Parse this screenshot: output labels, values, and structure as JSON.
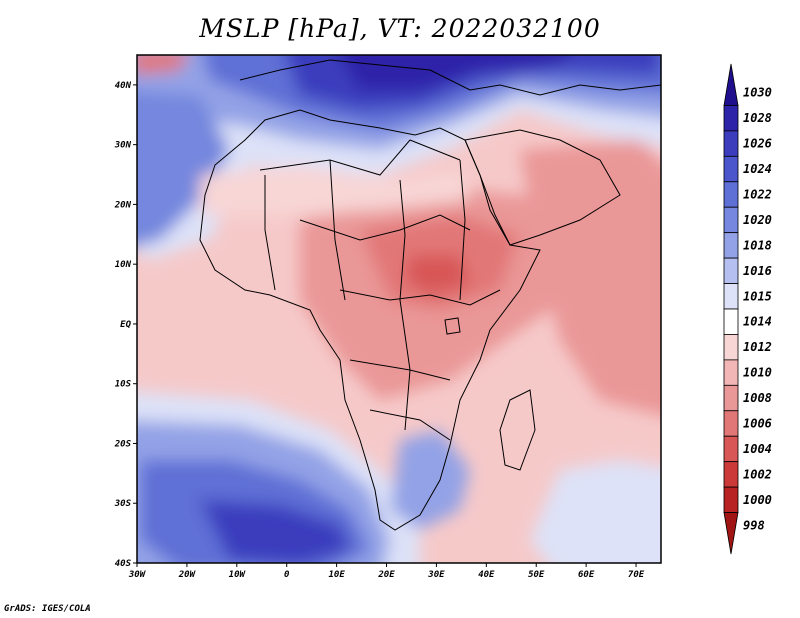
{
  "title": "MSLP [hPa], VT: 2022032100",
  "credit": "GrADS: IGES/COLA",
  "map": {
    "field": "MSLP",
    "units": "hPa",
    "lon_range": [
      -30,
      75
    ],
    "lat_range": [
      -40,
      45
    ],
    "lon_ticks": [
      "30W",
      "20W",
      "10W",
      "0",
      "10E",
      "20E",
      "30E",
      "40E",
      "50E",
      "60E",
      "70E"
    ],
    "lat_ticks": [
      "40N",
      "30N",
      "20N",
      "10N",
      "EQ",
      "10S",
      "20S",
      "30S",
      "40S"
    ],
    "background_ocean_hpa": 1012
  },
  "colorbar": {
    "levels": [
      "1030",
      "1028",
      "1026",
      "1024",
      "1022",
      "1020",
      "1018",
      "1016",
      "1015",
      "1014",
      "1012",
      "1010",
      "1008",
      "1006",
      "1004",
      "1002",
      "1000",
      "998"
    ],
    "colors": [
      "#1f0f8c",
      "#2d23a8",
      "#3b3dbd",
      "#4b55cc",
      "#5e6fd6",
      "#7587de",
      "#93a2e6",
      "#b6c0f0",
      "#dde2f8",
      "#ffffff",
      "#f8d6d6",
      "#f2b6b6",
      "#ea9797",
      "#e27777",
      "#d85656",
      "#cc3939",
      "#b92222",
      "#a01414"
    ]
  }
}
